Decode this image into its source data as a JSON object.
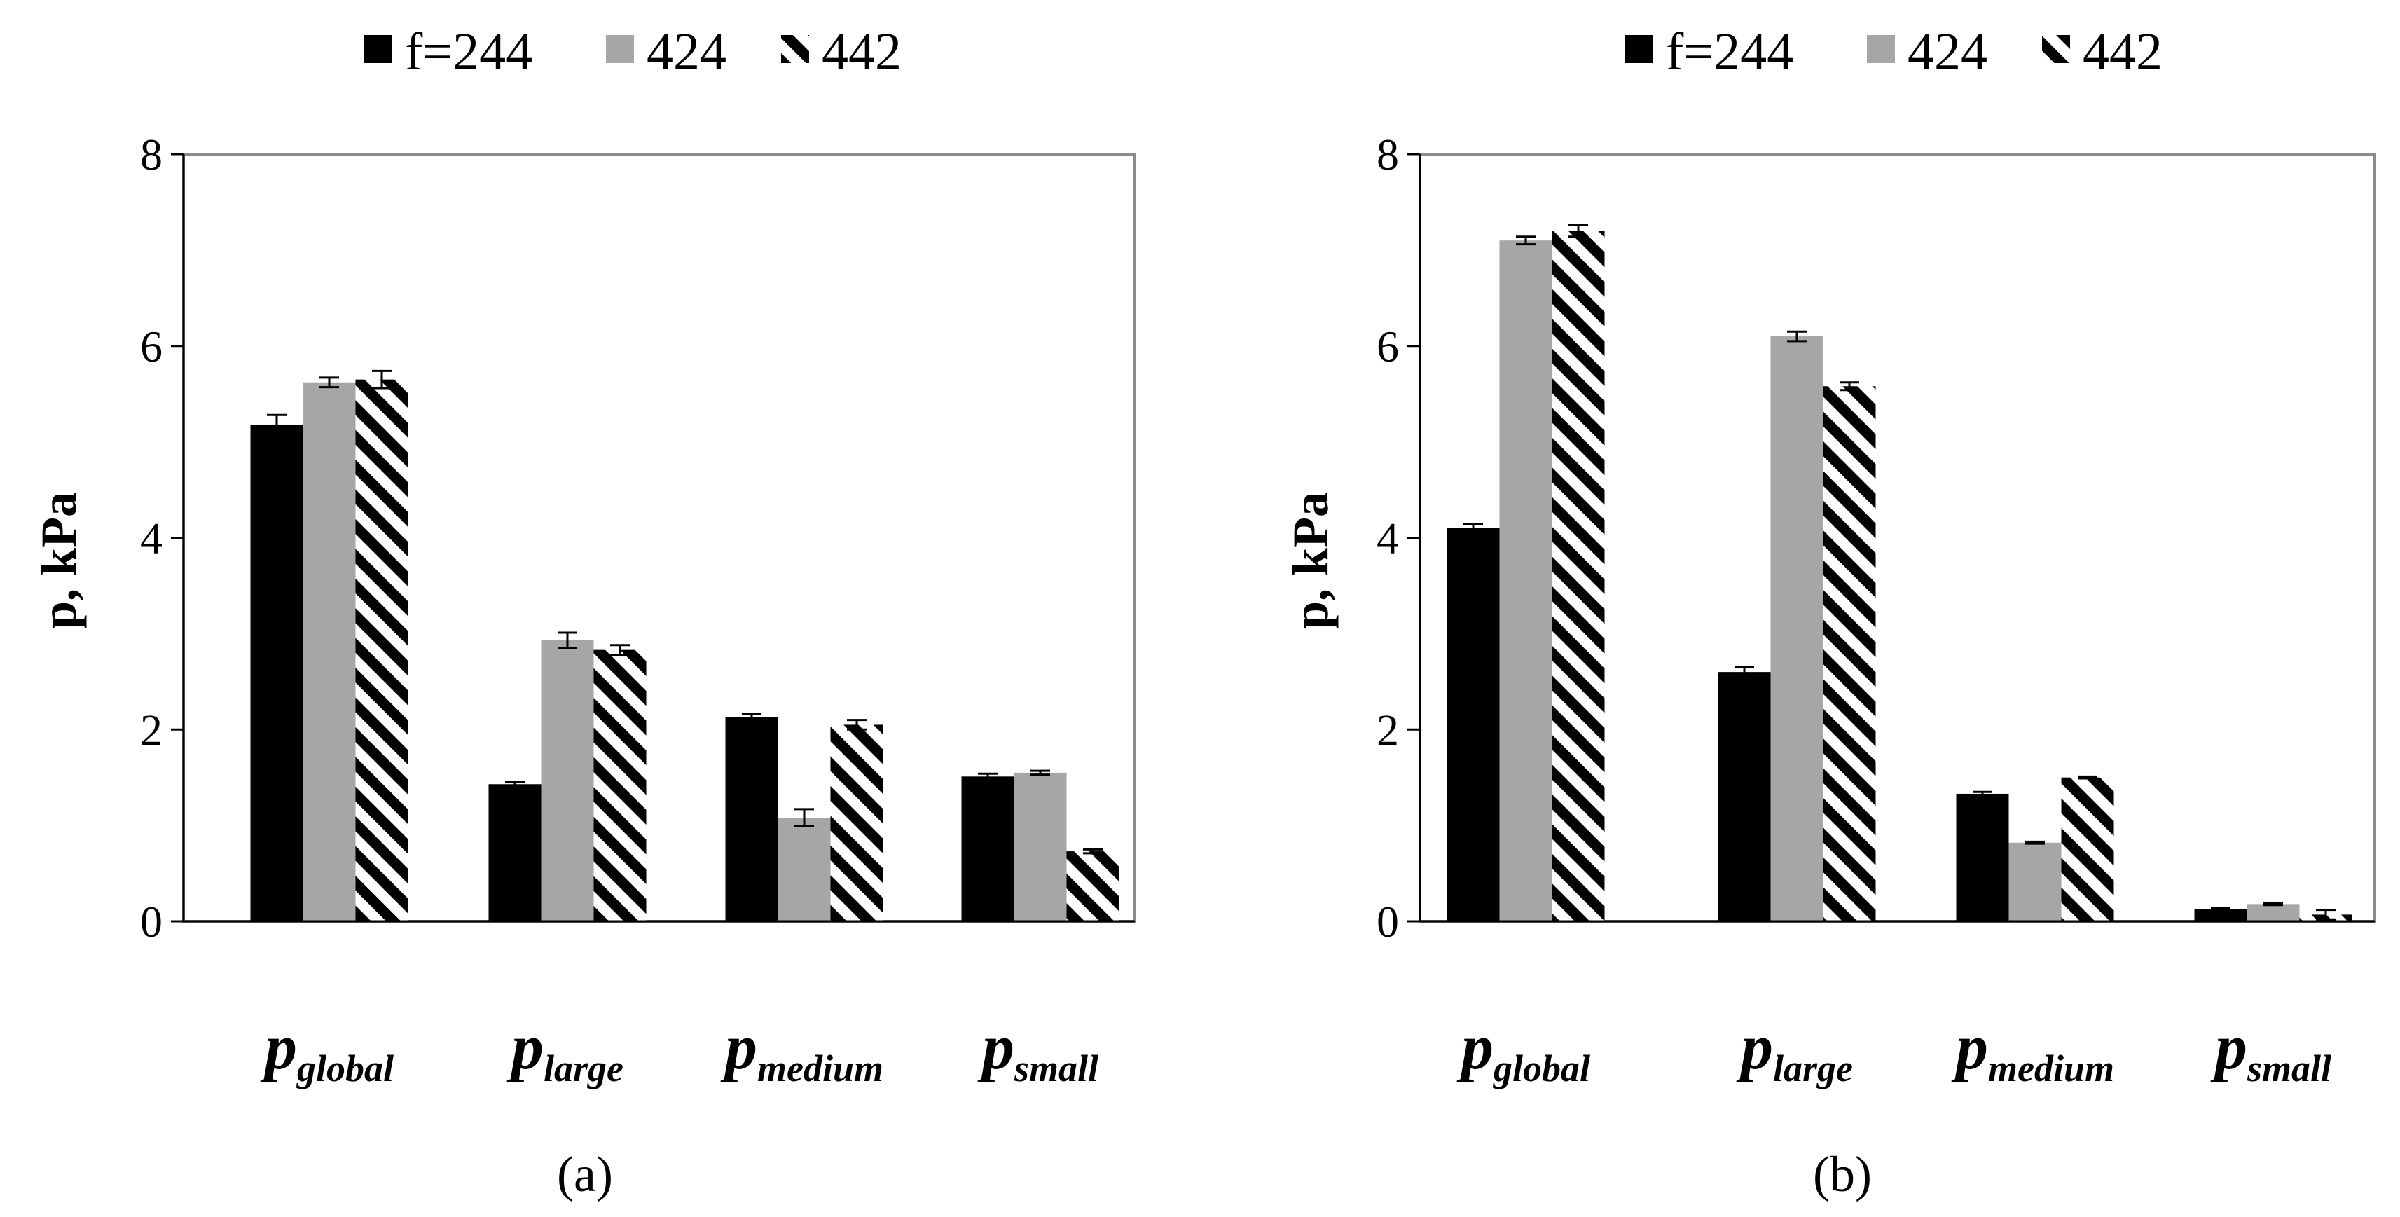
{
  "chart_data": [
    {
      "type": "bar",
      "panel_label": "(a)",
      "ylabel": "p, kPa",
      "ylim": [
        0,
        8
      ],
      "yticks": [
        "0",
        "2",
        "4",
        "6",
        "8"
      ],
      "categories": [
        {
          "main": "p",
          "sub": "global"
        },
        {
          "main": "p",
          "sub": "large"
        },
        {
          "main": "p",
          "sub": "medium"
        },
        {
          "main": "p",
          "sub": "small"
        }
      ],
      "legend": [
        "f=244",
        "424",
        "442"
      ],
      "series": [
        {
          "name": "f=244",
          "color": "#000000",
          "pattern": "solid",
          "values": [
            5.18,
            1.43,
            2.13,
            1.51
          ],
          "errors": [
            0.1,
            0.02,
            0.03,
            0.03
          ]
        },
        {
          "name": "424",
          "color": "#a6a6a6",
          "pattern": "solid",
          "values": [
            5.62,
            2.93,
            1.08,
            1.55
          ],
          "errors": [
            0.05,
            0.08,
            0.09,
            0.02
          ]
        },
        {
          "name": "442",
          "color": "#000000",
          "pattern": "diagonal-stripes",
          "values": [
            5.65,
            2.83,
            2.05,
            0.73
          ],
          "errors": [
            0.09,
            0.05,
            0.05,
            0.02
          ]
        }
      ]
    },
    {
      "type": "bar",
      "panel_label": "(b)",
      "ylabel": "p, kPa",
      "ylim": [
        0,
        8
      ],
      "yticks": [
        "0",
        "2",
        "4",
        "6",
        "8"
      ],
      "categories": [
        {
          "main": "p",
          "sub": "global"
        },
        {
          "main": "p",
          "sub": "large"
        },
        {
          "main": "p",
          "sub": "medium"
        },
        {
          "main": "p",
          "sub": "small"
        }
      ],
      "legend": [
        "f=244",
        "424",
        "442"
      ],
      "series": [
        {
          "name": "f=244",
          "color": "#000000",
          "pattern": "solid",
          "values": [
            4.1,
            2.6,
            1.33,
            0.13
          ],
          "errors": [
            0.04,
            0.05,
            0.02,
            0.01
          ]
        },
        {
          "name": "424",
          "color": "#a6a6a6",
          "pattern": "solid",
          "values": [
            7.1,
            6.1,
            0.82,
            0.18
          ],
          "errors": [
            0.04,
            0.05,
            0.01,
            0.01
          ]
        },
        {
          "name": "442",
          "color": "#000000",
          "pattern": "diagonal-stripes",
          "values": [
            7.2,
            5.58,
            1.5,
            0.07
          ],
          "errors": [
            0.06,
            0.04,
            0.01,
            0.05
          ]
        }
      ]
    }
  ]
}
